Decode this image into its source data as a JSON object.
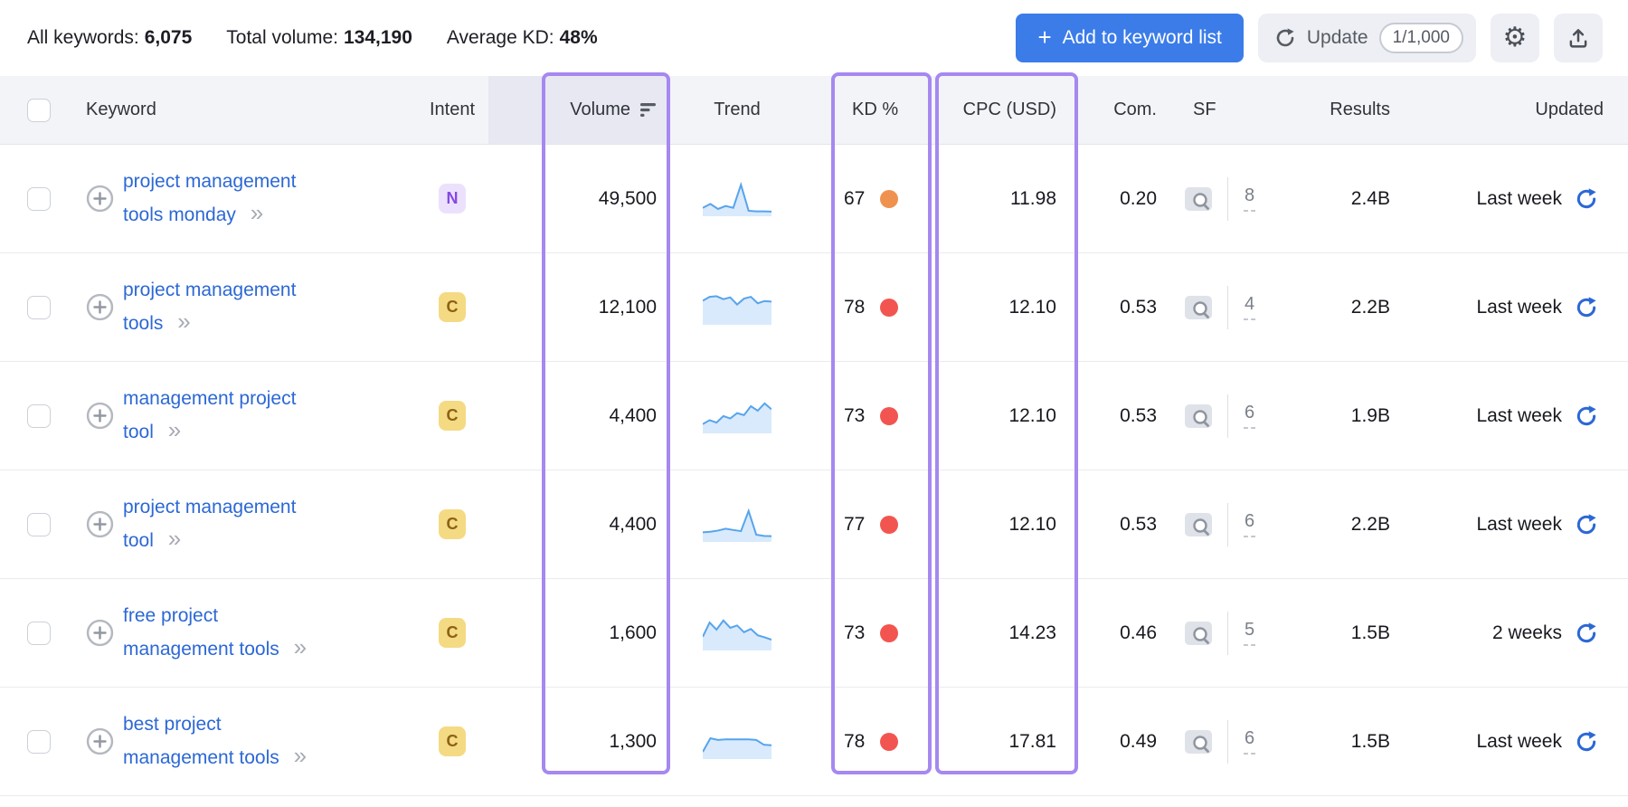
{
  "summary": {
    "all_keywords_label": "All keywords:",
    "all_keywords_value": "6,075",
    "total_volume_label": "Total volume:",
    "total_volume_value": "134,190",
    "avg_kd_label": "Average KD:",
    "avg_kd_value": "48%"
  },
  "toolbar": {
    "add_button": "Add to keyword list",
    "update_label": "Update",
    "update_counter": "1/1,000"
  },
  "table": {
    "headers": {
      "keyword": "Keyword",
      "intent": "Intent",
      "volume": "Volume",
      "trend": "Trend",
      "kd": "KD %",
      "cpc": "CPC (USD)",
      "com": "Com.",
      "sf": "SF",
      "results": "Results",
      "updated": "Updated"
    },
    "sort_column": "Volume",
    "sort_direction": "descending"
  },
  "rows": [
    {
      "keyword_lines": [
        "project management",
        "tools monday"
      ],
      "intent": {
        "label": "N",
        "bg": "#ece1fd",
        "text": "#8649e1"
      },
      "volume": "49,500",
      "trend": [
        22,
        35,
        18,
        28,
        22,
        100,
        12,
        10,
        10,
        9
      ],
      "kd": "67",
      "kd_color": "#f0924f",
      "cpc": "11.98",
      "com": "0.20",
      "sf": "8",
      "results": "2.4B",
      "updated": "Last week"
    },
    {
      "keyword_lines": [
        "project management",
        "tools"
      ],
      "intent": {
        "label": "C",
        "bg": "#f5da84",
        "text": "#8d6114"
      },
      "volume": "12,100",
      "trend": [
        75,
        88,
        90,
        80,
        86,
        62,
        82,
        88,
        66,
        74,
        72
      ],
      "kd": "78",
      "kd_color": "#f25550",
      "cpc": "12.10",
      "com": "0.53",
      "sf": "4",
      "results": "2.2B",
      "updated": "Last week"
    },
    {
      "keyword_lines": [
        "management project",
        "tool"
      ],
      "intent": {
        "label": "C",
        "bg": "#f5da84",
        "text": "#8d6114"
      },
      "volume": "4,400",
      "trend": [
        25,
        38,
        30,
        52,
        44,
        62,
        55,
        85,
        70,
        95,
        75
      ],
      "kd": "73",
      "kd_color": "#f25550",
      "cpc": "12.10",
      "com": "0.53",
      "sf": "6",
      "results": "1.9B",
      "updated": "Last week"
    },
    {
      "keyword_lines": [
        "project management",
        "tool"
      ],
      "intent": {
        "label": "C",
        "bg": "#f5da84",
        "text": "#8d6114"
      },
      "volume": "4,400",
      "trend": [
        26,
        28,
        32,
        38,
        34,
        30,
        98,
        18,
        14,
        13
      ],
      "kd": "77",
      "kd_color": "#f25550",
      "cpc": "12.10",
      "com": "0.53",
      "sf": "6",
      "results": "2.2B",
      "updated": "Last week"
    },
    {
      "keyword_lines": [
        "free project",
        "management tools"
      ],
      "intent": {
        "label": "C",
        "bg": "#f5da84",
        "text": "#8d6114"
      },
      "volume": "1,600",
      "trend": [
        40,
        88,
        64,
        95,
        70,
        78,
        55,
        66,
        45,
        38,
        30
      ],
      "kd": "73",
      "kd_color": "#f25550",
      "cpc": "14.23",
      "com": "0.46",
      "sf": "5",
      "results": "1.5B",
      "updated": "2 weeks"
    },
    {
      "keyword_lines": [
        "best project",
        "management tools"
      ],
      "intent": {
        "label": "C",
        "bg": "#f5da84",
        "text": "#8d6114"
      },
      "volume": "1,300",
      "trend": [
        18,
        64,
        58,
        60,
        60,
        60,
        60,
        58,
        42,
        40
      ],
      "kd": "78",
      "kd_color": "#f25550",
      "cpc": "17.81",
      "com": "0.49",
      "sf": "6",
      "results": "1.5B",
      "updated": "Last week"
    }
  ],
  "colors": {
    "accent_blue": "#3b7ce9",
    "link_blue": "#2c68d5",
    "highlight_purple": "#a688f0",
    "kd_orange": "#f0924f",
    "kd_red": "#f25550",
    "trend_line": "#57a4ec",
    "trend_fill": "#d9eafc",
    "intent_n_bg": "#ece1fd",
    "intent_n_text": "#8649e1",
    "intent_c_bg": "#f5da84",
    "intent_c_text": "#8d6114"
  }
}
